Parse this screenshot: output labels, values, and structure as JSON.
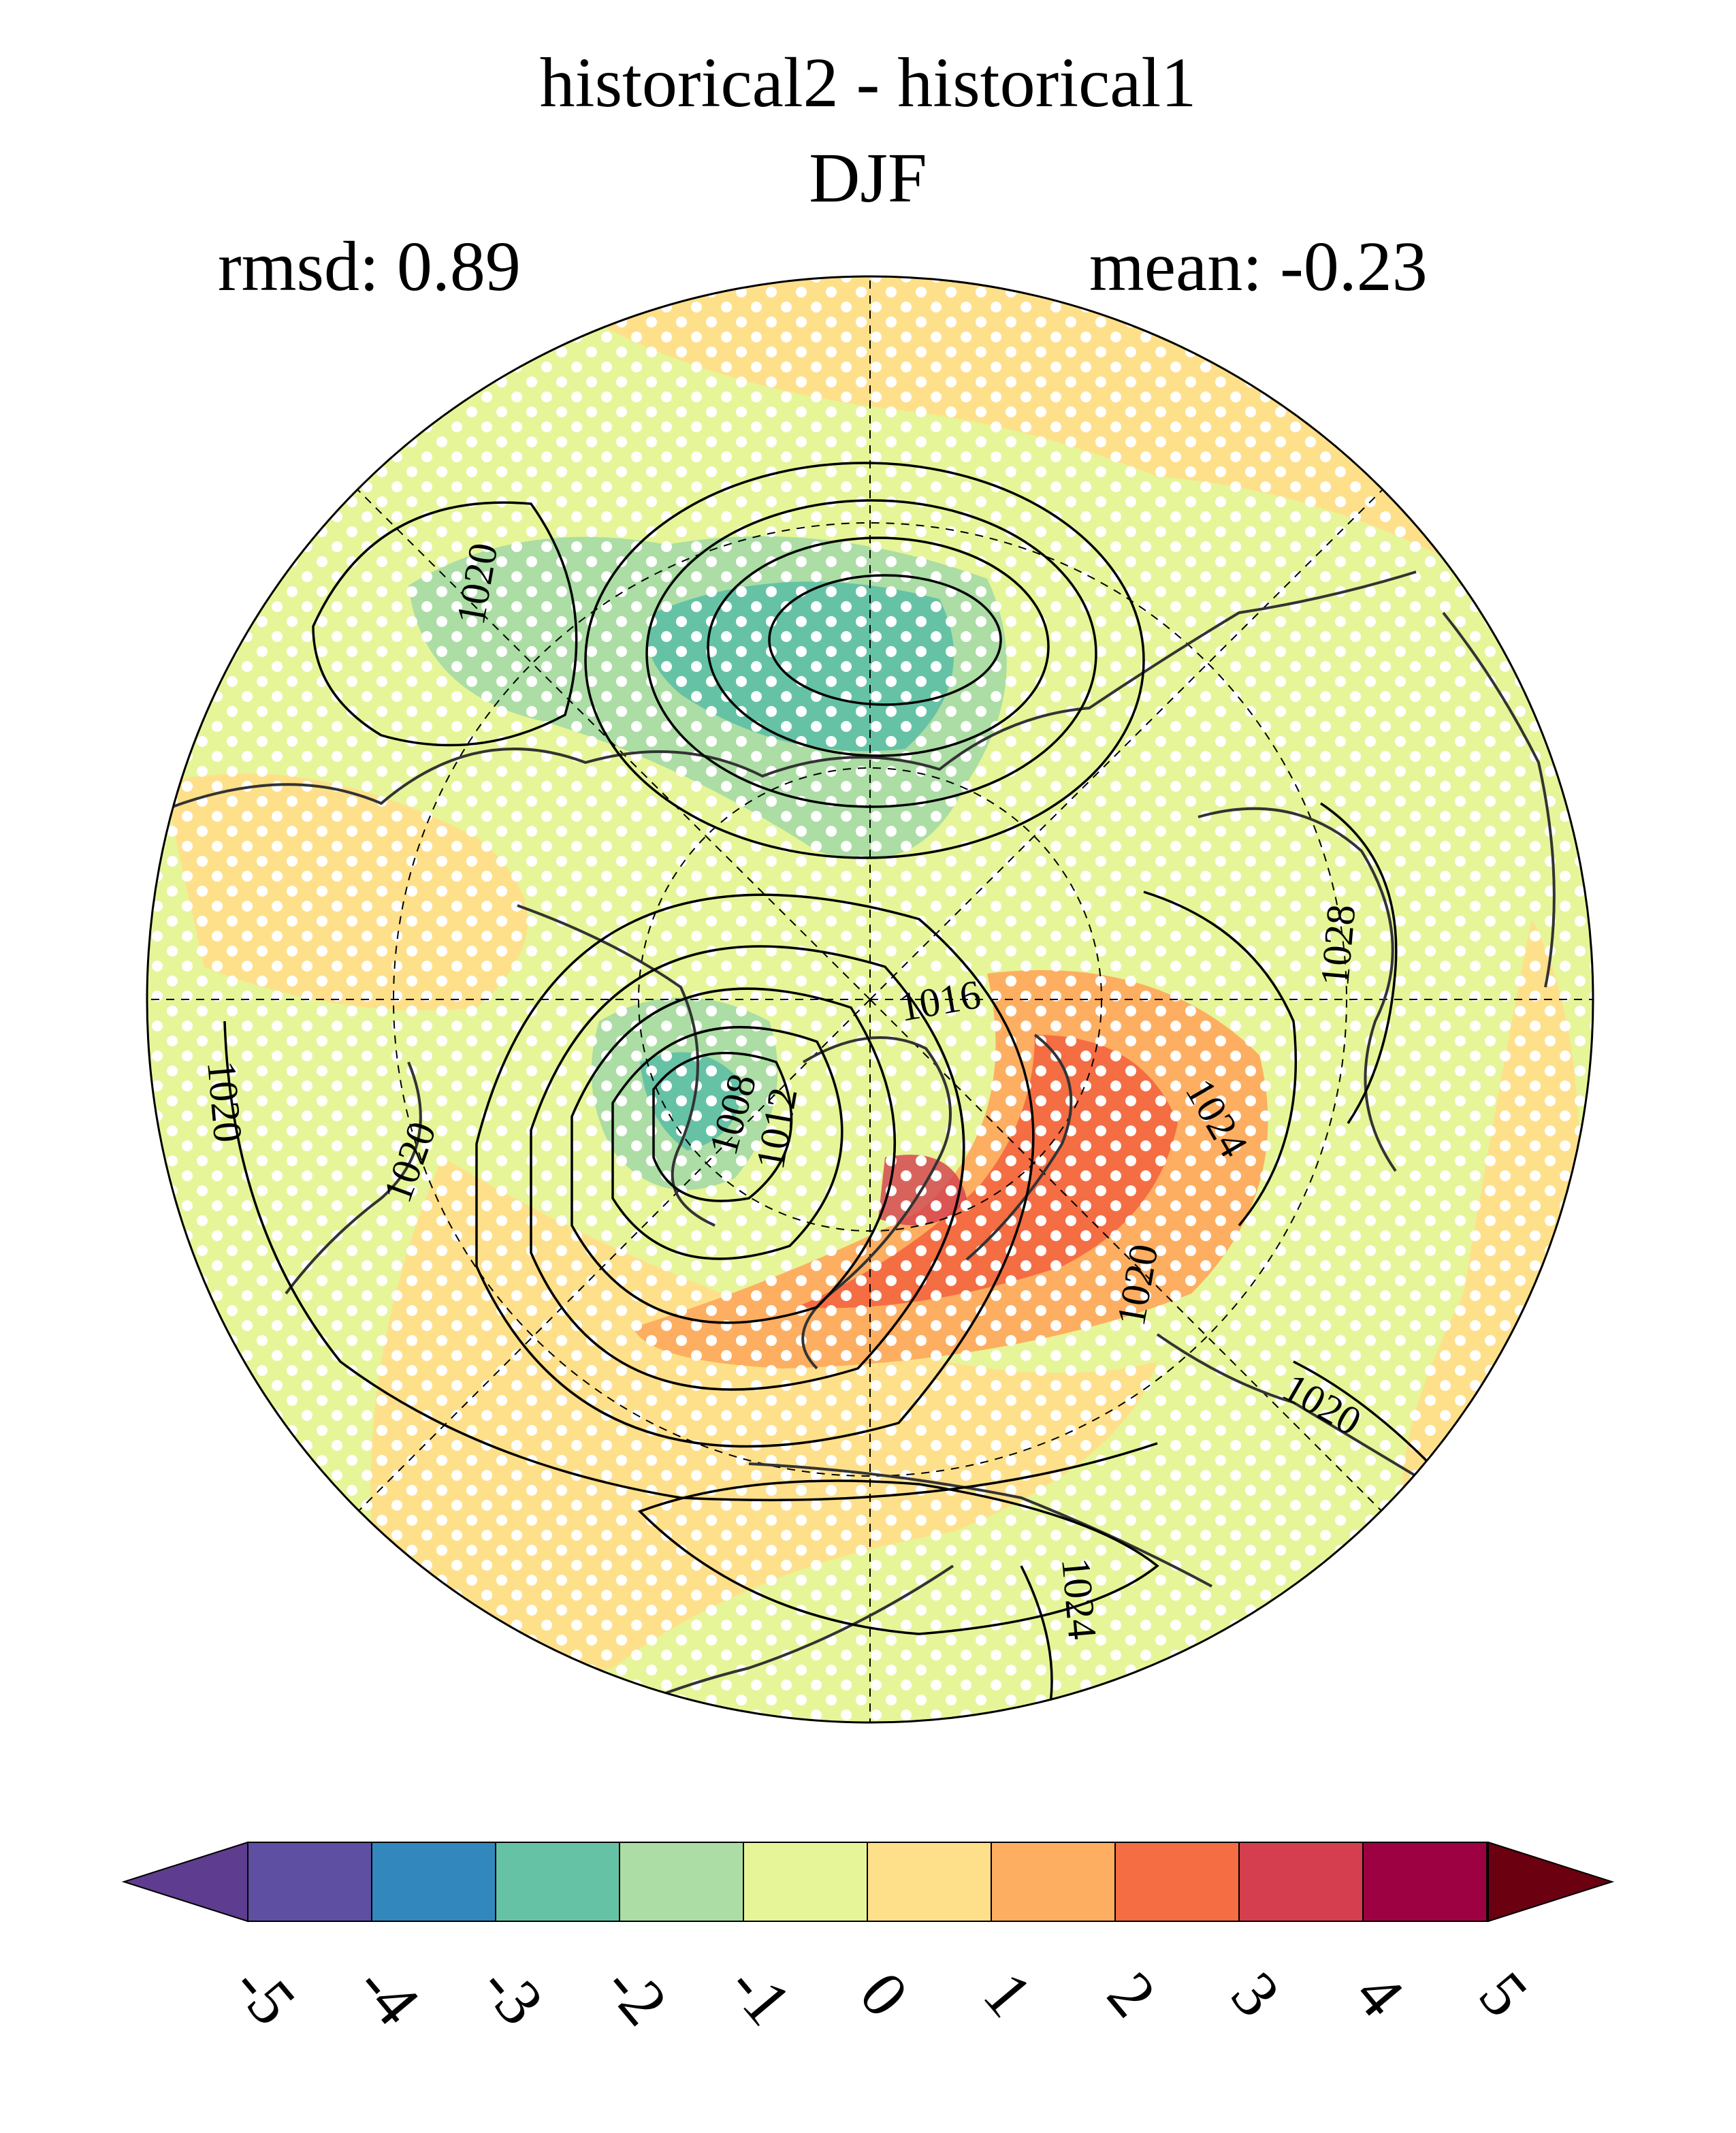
{
  "header": {
    "title": "historical2 - historical1",
    "season": "DJF",
    "rmsd_label": "rmsd: 0.89",
    "mean_label": "mean: -0.23"
  },
  "map": {
    "projection": "north-polar-stereographic",
    "stippling": "white dots",
    "contour_labels": [
      "1020",
      "1020",
      "1008",
      "1012",
      "1016",
      "1028",
      "1024",
      "1020",
      "1020",
      "1020",
      "1024"
    ]
  },
  "colorbar": {
    "ticks": [
      "-5",
      "-4",
      "-3",
      "-2",
      "-1",
      "0",
      "1",
      "2",
      "3",
      "4",
      "5"
    ],
    "colors": [
      "#5e4fa2",
      "#3288bd",
      "#66c2a5",
      "#abdda4",
      "#e6f598",
      "#fee08b",
      "#fdae61",
      "#f46d43",
      "#d53e4f",
      "#9e0142"
    ],
    "under_color": "#5e3c8f",
    "over_color": "#6a0010"
  }
}
